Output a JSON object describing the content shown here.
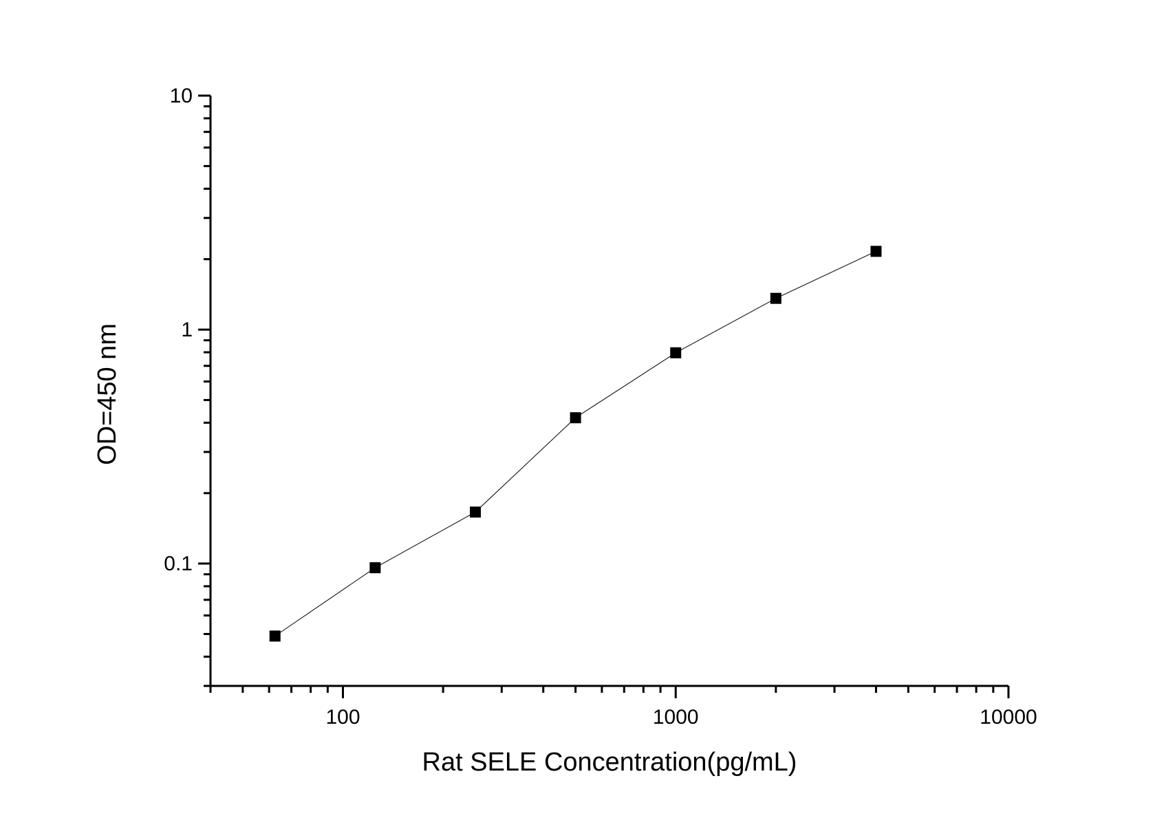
{
  "chart_data": {
    "type": "line",
    "title": "",
    "xlabel": "Rat SELE  Concentration(pg/mL)",
    "ylabel": "OD=450 nm",
    "xscale": "log",
    "yscale": "log",
    "xlim": [
      40,
      10000
    ],
    "ylim": [
      0.03,
      10
    ],
    "x_ticks": [
      {
        "value": 100,
        "label": "100"
      },
      {
        "value": 1000,
        "label": "1000"
      },
      {
        "value": 10000,
        "label": "10000"
      }
    ],
    "y_ticks": [
      {
        "value": 0.1,
        "label": "0.1"
      },
      {
        "value": 1,
        "label": "1"
      },
      {
        "value": 10,
        "label": "10"
      }
    ],
    "grid": false,
    "marker": "square",
    "colors": {
      "line": "#000000",
      "marker": "#000000",
      "axis": "#000000"
    },
    "series": [
      {
        "x": [
          62.5,
          125,
          250,
          500,
          1000,
          2000,
          4000
        ],
        "y": [
          0.049,
          0.096,
          0.166,
          0.42,
          0.796,
          1.36,
          2.16
        ]
      }
    ]
  }
}
